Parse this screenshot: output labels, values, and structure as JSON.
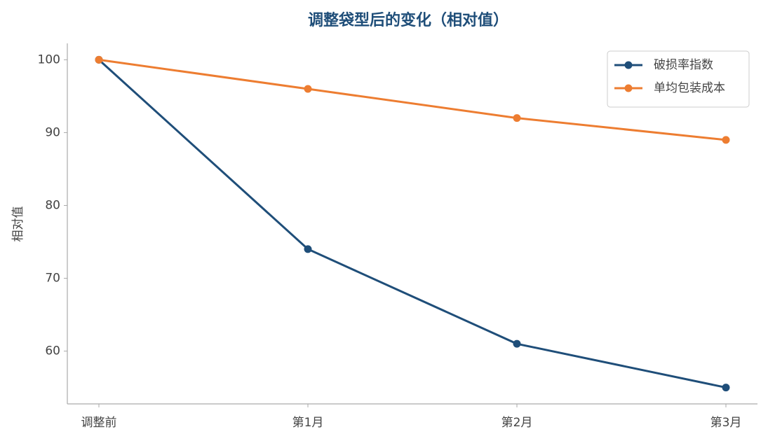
{
  "chart_data": {
    "type": "line",
    "title": "调整袋型后的变化（相对值）",
    "y_label": "相对值",
    "categories": [
      "调整前",
      "第1月",
      "第2月",
      "第3月"
    ],
    "series": [
      {
        "name": "破损率指数",
        "color": "#1f4e79",
        "values": [
          100,
          74,
          61,
          55
        ]
      },
      {
        "name": "单均包装成本",
        "color": "#ed7d31",
        "values": [
          100,
          96,
          92,
          89
        ]
      }
    ],
    "ylim": [
      52.75,
      102.25
    ],
    "yticks": [
      60,
      70,
      80,
      90,
      100
    ],
    "grid": false,
    "legend": "upper right"
  }
}
